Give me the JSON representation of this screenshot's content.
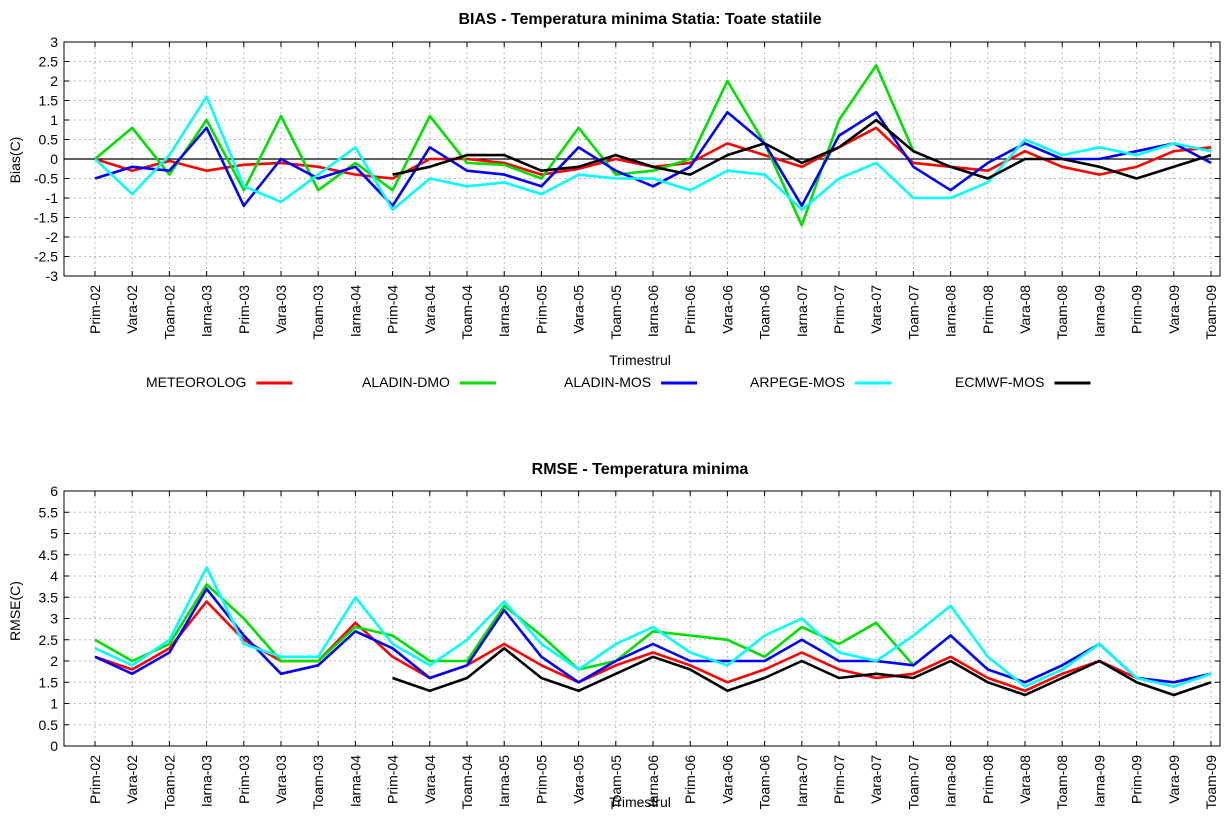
{
  "chart_data": [
    {
      "type": "line",
      "title": "BIAS - Temperatura minima  Statia: Toate statiile",
      "xlabel": "Trimestrul",
      "ylabel": "Bias(C)",
      "ylim": [
        -3,
        3
      ],
      "yticks": [
        "3",
        "2.5",
        "2",
        "1.5",
        "1",
        "0.5",
        "0",
        "-0.5",
        "-1",
        "-1.5",
        "-2",
        "-2.5",
        "-3"
      ],
      "grid": true,
      "zero_line": true,
      "categories": [
        "Prim-02",
        "Vara-02",
        "Toam-02",
        "Iarna-03",
        "Prim-03",
        "Vara-03",
        "Toam-03",
        "Iarna-04",
        "Prim-04",
        "Vara-04",
        "Toam-04",
        "Iarna-05",
        "Prim-05",
        "Vara-05",
        "Toam-05",
        "Iarna-06",
        "Prim-06",
        "Vara-06",
        "Toam-06",
        "Iarna-07",
        "Prim-07",
        "Vara-07",
        "Toam-07",
        "Iarna-08",
        "Prim-08",
        "Vara-08",
        "Toam-08",
        "Iarna-09",
        "Prim-09",
        "Vara-09",
        "Toam-09"
      ],
      "series": [
        {
          "name": "METEOROLOG",
          "color": "#ff0000",
          "values": [
            0,
            -0.3,
            -0.05,
            -0.3,
            -0.15,
            -0.1,
            -0.2,
            -0.4,
            -0.5,
            0,
            0,
            -0.1,
            -0.4,
            -0.25,
            0,
            -0.2,
            -0.1,
            0.4,
            0.1,
            -0.2,
            0.3,
            0.8,
            -0.1,
            -0.2,
            -0.3,
            0.2,
            -0.2,
            -0.4,
            -0.2,
            0.2,
            0.3
          ]
        },
        {
          "name": "ALADIN-DMO",
          "color": "#00e000",
          "values": [
            0,
            0.8,
            -0.4,
            1.0,
            -0.8,
            1.1,
            -0.8,
            -0.1,
            -0.8,
            1.1,
            -0.1,
            -0.15,
            -0.5,
            0.8,
            -0.4,
            -0.3,
            0,
            2.0,
            0.4,
            -1.7,
            1.0,
            2.4,
            0.2,
            null,
            null,
            null,
            null,
            null,
            null,
            null,
            null
          ]
        },
        {
          "name": "ALADIN-MOS",
          "color": "#0000ff",
          "values": [
            -0.5,
            -0.2,
            -0.3,
            0.8,
            -1.2,
            0,
            -0.5,
            -0.2,
            -1.2,
            0.3,
            -0.3,
            -0.4,
            -0.7,
            0.3,
            -0.3,
            -0.7,
            -0.2,
            1.2,
            0.4,
            -1.2,
            0.6,
            1.2,
            -0.2,
            -0.8,
            -0.1,
            0.4,
            0,
            0,
            0.2,
            0.4,
            -0.1
          ]
        },
        {
          "name": "ARPEGE-MOS",
          "color": "#00ffff",
          "values": [
            0,
            -0.9,
            0.1,
            1.6,
            -0.7,
            -1.1,
            -0.4,
            0.3,
            -1.3,
            -0.5,
            -0.7,
            -0.6,
            -0.9,
            -0.4,
            -0.5,
            -0.5,
            -0.8,
            -0.3,
            -0.4,
            -1.3,
            -0.5,
            -0.1,
            -1.0,
            -1.0,
            -0.6,
            0.5,
            0.1,
            0.3,
            0.1,
            0.4,
            0.2
          ]
        },
        {
          "name": "ECMWF-MOS",
          "color": "#000000",
          "values": [
            null,
            null,
            null,
            null,
            null,
            null,
            null,
            null,
            -0.4,
            -0.2,
            0.1,
            0.1,
            -0.3,
            -0.2,
            0.1,
            -0.2,
            -0.4,
            0.1,
            0.4,
            -0.1,
            0.3,
            1.0,
            0.2,
            -0.2,
            -0.5,
            0,
            0,
            -0.2,
            -0.5,
            -0.2,
            0.1
          ]
        }
      ]
    },
    {
      "type": "line",
      "title": "RMSE - Temperatura minima",
      "xlabel": "Trimestrul",
      "ylabel": "RMSE(C)",
      "ylim": [
        0,
        6
      ],
      "yticks": [
        "6",
        "5.5",
        "5",
        "4.5",
        "4",
        "3.5",
        "3",
        "2.5",
        "2",
        "1.5",
        "1",
        "0.5",
        "0"
      ],
      "grid": true,
      "categories": [
        "Prim-02",
        "Vara-02",
        "Toam-02",
        "Iarna-03",
        "Prim-03",
        "Vara-03",
        "Toam-03",
        "Iarna-04",
        "Prim-04",
        "Vara-04",
        "Toam-04",
        "Iarna-05",
        "Prim-05",
        "Vara-05",
        "Toam-05",
        "Iarna-06",
        "Prim-06",
        "Vara-06",
        "Toam-06",
        "Iarna-07",
        "Prim-07",
        "Vara-07",
        "Toam-07",
        "Iarna-08",
        "Prim-08",
        "Vara-08",
        "Toam-08",
        "Iarna-09",
        "Prim-09",
        "Vara-09",
        "Toam-09"
      ],
      "series": [
        {
          "name": "METEOROLOG",
          "color": "#ff0000",
          "values": [
            2.1,
            1.8,
            2.3,
            3.4,
            2.5,
            2.0,
            2.0,
            2.9,
            2.1,
            1.6,
            1.9,
            2.4,
            1.9,
            1.5,
            1.9,
            2.2,
            1.9,
            1.5,
            1.8,
            2.2,
            1.8,
            1.6,
            1.7,
            2.1,
            1.6,
            1.3,
            1.7,
            2.0,
            1.6,
            1.4,
            1.7
          ]
        },
        {
          "name": "ALADIN-DMO",
          "color": "#00e000",
          "values": [
            2.5,
            2.0,
            2.4,
            3.8,
            3.0,
            2.0,
            2.0,
            2.8,
            2.6,
            2.0,
            2.0,
            3.3,
            2.6,
            1.8,
            2.0,
            2.7,
            2.6,
            2.5,
            2.1,
            2.8,
            2.4,
            2.9,
            1.9,
            null,
            null,
            null,
            null,
            null,
            null,
            null,
            null
          ]
        },
        {
          "name": "ALADIN-MOS",
          "color": "#0000ff",
          "values": [
            2.1,
            1.7,
            2.2,
            3.7,
            2.6,
            1.7,
            1.9,
            2.7,
            2.3,
            1.6,
            1.9,
            3.2,
            2.1,
            1.5,
            2.0,
            2.4,
            2.0,
            2.0,
            2.0,
            2.5,
            2.0,
            2.0,
            1.9,
            2.6,
            1.8,
            1.5,
            1.9,
            2.4,
            1.6,
            1.5,
            1.7
          ]
        },
        {
          "name": "ARPEGE-MOS",
          "color": "#00ffff",
          "values": [
            2.3,
            1.9,
            2.5,
            4.2,
            2.4,
            2.1,
            2.1,
            3.5,
            2.4,
            1.9,
            2.5,
            3.4,
            2.4,
            1.8,
            2.4,
            2.8,
            2.2,
            1.9,
            2.6,
            3.0,
            2.2,
            2.0,
            2.6,
            3.3,
            2.1,
            1.4,
            1.8,
            2.4,
            1.6,
            1.4,
            1.7
          ]
        },
        {
          "name": "ECMWF-MOS",
          "color": "#000000",
          "values": [
            null,
            null,
            null,
            null,
            null,
            null,
            null,
            null,
            1.6,
            1.3,
            1.6,
            2.3,
            1.6,
            1.3,
            1.7,
            2.1,
            1.8,
            1.3,
            1.6,
            2.0,
            1.6,
            1.7,
            1.6,
            2.0,
            1.5,
            1.2,
            1.6,
            2.0,
            1.5,
            1.2,
            1.5
          ]
        }
      ]
    }
  ]
}
